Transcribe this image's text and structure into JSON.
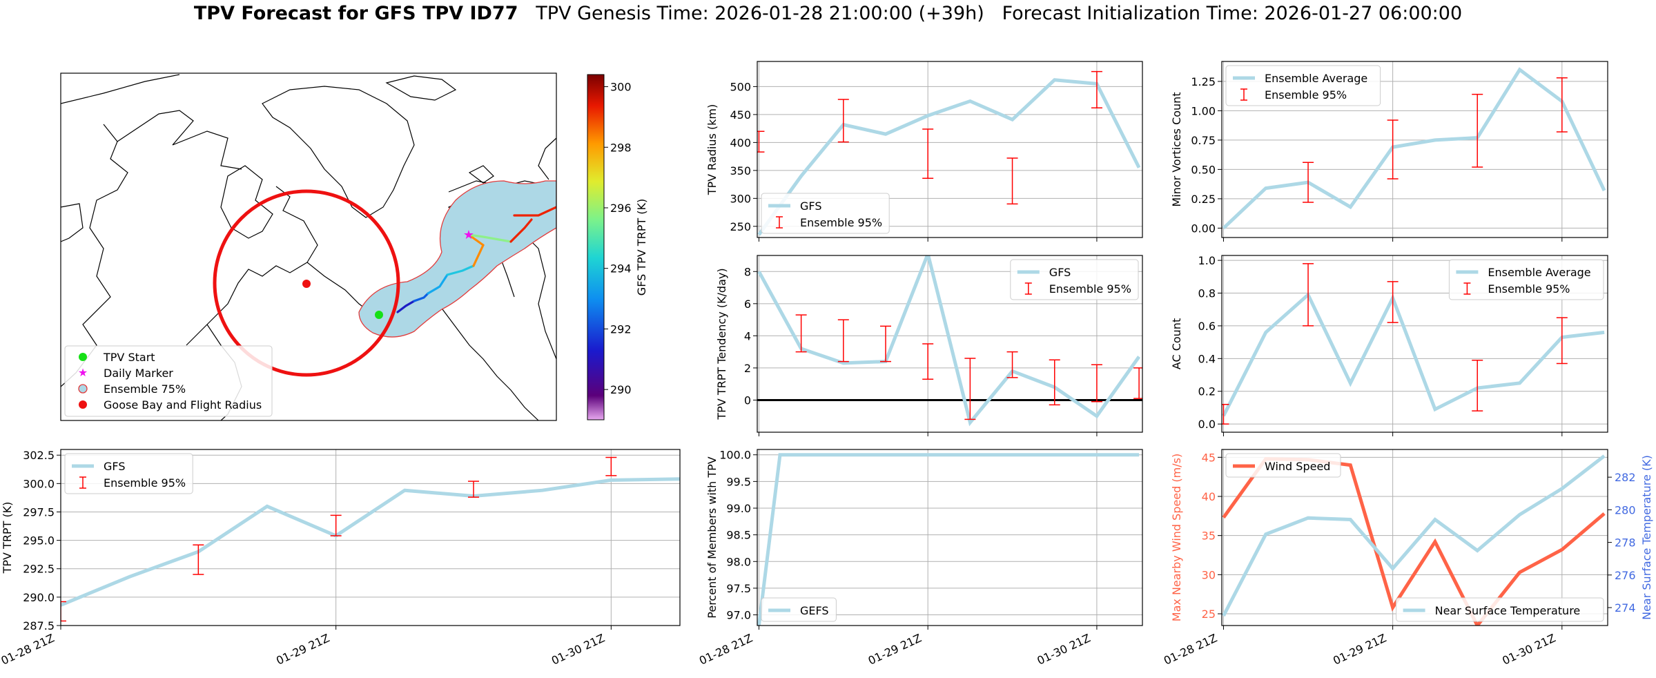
{
  "title": {
    "main": "TPV Forecast for GFS TPV ID77",
    "genesis": "TPV Genesis Time: 2026-01-28 21:00:00 (+39h)",
    "init": "Forecast Initialization Time: 2026-01-27 06:00:00"
  },
  "time_ticks": [
    "01-28 21Z",
    "01-29 21Z",
    "01-30 21Z"
  ],
  "colors": {
    "main_line": "#add8e6",
    "error_bar": "#ff0000",
    "wind": "#ff6347",
    "temp_axis": "#4169e1",
    "grid": "#b0b0b0"
  },
  "map": {
    "legend": [
      "TPV Start",
      "Daily Marker",
      "Ensemble 75%",
      "Goose Bay and Flight Radius"
    ],
    "colorbar": {
      "label": "GFS TPV TRPT (K)",
      "min": 289,
      "max": 300.4,
      "ticks": [
        "290",
        "292",
        "294",
        "296",
        "298",
        "300"
      ]
    }
  },
  "chart_data": [
    {
      "id": "radius",
      "type": "line",
      "ylabel": "TPV Radius (km)",
      "ylim": [
        230,
        545
      ],
      "yticks": [
        "250",
        "300",
        "350",
        "400",
        "450",
        "500"
      ],
      "x": [
        0,
        0.25,
        0.5,
        0.75,
        1.0,
        1.25,
        1.5,
        1.75,
        2.0,
        2.25
      ],
      "series": [
        {
          "name": "GFS",
          "values": [
            235,
            340,
            432,
            415,
            448,
            474,
            441,
            512,
            505,
            355
          ]
        }
      ],
      "error_bars": [
        {
          "x": 0.0,
          "low": 383,
          "high": 420
        },
        {
          "x": 0.25,
          "low": null,
          "high": null
        },
        {
          "x": 0.5,
          "low": 401,
          "high": 477
        },
        {
          "x": 1.0,
          "low": 336,
          "high": 424
        },
        {
          "x": 1.5,
          "low": 290,
          "high": 372
        },
        {
          "x": 2.0,
          "low": 462,
          "high": 527
        }
      ],
      "legend": [
        "GFS",
        "Ensemble 95%"
      ],
      "legend_loc": "lower-left"
    },
    {
      "id": "minor-vortices",
      "type": "line",
      "ylabel": "Minor Vortices Count",
      "ylim": [
        -0.08,
        1.42
      ],
      "yticks": [
        "0.00",
        "0.25",
        "0.50",
        "0.75",
        "1.00",
        "1.25"
      ],
      "x": [
        0,
        0.25,
        0.5,
        0.75,
        1.0,
        1.25,
        1.5,
        1.75,
        2.0,
        2.25
      ],
      "series": [
        {
          "name": "Ensemble Average",
          "values": [
            0.0,
            0.34,
            0.39,
            0.18,
            0.69,
            0.75,
            0.77,
            1.35,
            1.08,
            0.32
          ]
        }
      ],
      "error_bars": [
        {
          "x": 0.5,
          "low": 0.22,
          "high": 0.56
        },
        {
          "x": 1.0,
          "low": 0.42,
          "high": 0.92
        },
        {
          "x": 1.5,
          "low": 0.52,
          "high": 1.14
        },
        {
          "x": 2.0,
          "low": 0.82,
          "high": 1.28
        }
      ],
      "legend": [
        "Ensemble Average",
        "Ensemble 95%"
      ],
      "legend_loc": "upper-left"
    },
    {
      "id": "tendency",
      "type": "line",
      "ylabel": "TPV TRPT Tendency (K/day)",
      "ylim": [
        -2.0,
        9.0
      ],
      "yticks": [
        "0",
        "2",
        "4",
        "6",
        "8"
      ],
      "x": [
        0,
        0.25,
        0.5,
        0.75,
        1.0,
        1.25,
        1.5,
        1.75,
        2.0,
        2.25
      ],
      "series": [
        {
          "name": "GFS",
          "values": [
            8.0,
            3.2,
            2.3,
            2.4,
            9.1,
            -1.4,
            1.8,
            0.8,
            -1.0,
            2.7
          ]
        }
      ],
      "error_bars": [
        {
          "x": 0.25,
          "low": 3.0,
          "high": 5.3
        },
        {
          "x": 0.5,
          "low": 2.4,
          "high": 5.0
        },
        {
          "x": 0.75,
          "low": 2.4,
          "high": 4.6
        },
        {
          "x": 1.0,
          "low": 1.3,
          "high": 3.5
        },
        {
          "x": 1.25,
          "low": -1.2,
          "high": 2.6
        },
        {
          "x": 1.5,
          "low": 1.4,
          "high": 3.0
        },
        {
          "x": 1.75,
          "low": -0.3,
          "high": 2.5
        },
        {
          "x": 2.0,
          "low": -0.1,
          "high": 2.2
        },
        {
          "x": 2.25,
          "low": 0.1,
          "high": 2.0
        }
      ],
      "zero_line": true,
      "legend": [
        "GFS",
        "Ensemble 95%"
      ],
      "legend_loc": "upper-right"
    },
    {
      "id": "ac-count",
      "type": "line",
      "ylabel": "AC Count",
      "ylim": [
        -0.05,
        1.03
      ],
      "yticks": [
        "0.0",
        "0.2",
        "0.4",
        "0.6",
        "0.8",
        "1.0"
      ],
      "x": [
        0,
        0.25,
        0.5,
        0.75,
        1.0,
        1.25,
        1.5,
        1.75,
        2.0,
        2.25
      ],
      "series": [
        {
          "name": "Ensemble Average",
          "values": [
            0.05,
            0.56,
            0.79,
            0.25,
            0.77,
            0.09,
            0.22,
            0.25,
            0.53,
            0.56
          ]
        }
      ],
      "error_bars": [
        {
          "x": 0.0,
          "low": 0.0,
          "high": 0.12
        },
        {
          "x": 0.5,
          "low": 0.6,
          "high": 0.98
        },
        {
          "x": 1.0,
          "low": 0.62,
          "high": 0.87
        },
        {
          "x": 1.5,
          "low": 0.08,
          "high": 0.39
        },
        {
          "x": 2.0,
          "low": 0.37,
          "high": 0.65
        }
      ],
      "legend": [
        "Ensemble Average",
        "Ensemble 95%"
      ],
      "legend_loc": "upper-right"
    },
    {
      "id": "trpt",
      "type": "line",
      "ylabel": "TPV TRPT (K)",
      "ylim": [
        287.5,
        303.0
      ],
      "yticks": [
        "287.5",
        "290.0",
        "292.5",
        "295.0",
        "297.5",
        "300.0",
        "302.5"
      ],
      "x": [
        0,
        0.25,
        0.5,
        0.75,
        1.0,
        1.25,
        1.5,
        1.75,
        2.0,
        2.25
      ],
      "series": [
        {
          "name": "GFS",
          "values": [
            289.3,
            291.8,
            294.0,
            298.0,
            295.4,
            299.4,
            298.9,
            299.4,
            300.3,
            300.4
          ]
        }
      ],
      "error_bars": [
        {
          "x": 0.0,
          "low": 287.9,
          "high": 289.6
        },
        {
          "x": 0.5,
          "low": 292.0,
          "high": 294.6
        },
        {
          "x": 1.0,
          "low": 295.4,
          "high": 297.2
        },
        {
          "x": 1.5,
          "low": 298.8,
          "high": 300.2
        },
        {
          "x": 2.0,
          "low": 300.7,
          "high": 302.3
        }
      ],
      "legend": [
        "GFS",
        "Ensemble 95%"
      ],
      "legend_loc": "upper-left"
    },
    {
      "id": "percent-members",
      "type": "line",
      "ylabel": "Percent of Members with TPV",
      "ylim": [
        96.8,
        100.1
      ],
      "yticks": [
        "97.0",
        "97.5",
        "98.0",
        "98.5",
        "99.0",
        "99.5",
        "100.0"
      ],
      "x": [
        0,
        0.125,
        0.25,
        0.5,
        0.75,
        1.0,
        1.25,
        1.5,
        1.75,
        2.0,
        2.25
      ],
      "series": [
        {
          "name": "GEFS",
          "values": [
            96.8,
            100.0,
            100.0,
            100.0,
            100.0,
            100.0,
            100.0,
            100.0,
            100.0,
            100.0,
            100.0
          ]
        }
      ],
      "error_bars": [],
      "legend": [
        "GEFS"
      ],
      "legend_loc": "lower-left"
    },
    {
      "id": "wind-temp",
      "type": "line",
      "ylabel": "Max Nearby Wind Speed (m/s)",
      "ylabel_right": "Near Surface Temperature (K)",
      "ylim": [
        23.5,
        46.0
      ],
      "ylim_right": [
        272.9,
        283.7
      ],
      "yticks": [
        "25",
        "30",
        "35",
        "40",
        "45"
      ],
      "yticks_right": [
        "274",
        "276",
        "278",
        "280",
        "282"
      ],
      "x": [
        0,
        0.25,
        0.5,
        0.75,
        1.0,
        1.25,
        1.5,
        1.75,
        2.0,
        2.25
      ],
      "series": [
        {
          "name": "Wind Speed",
          "axis": "left",
          "values": [
            37.3,
            44.8,
            44.7,
            44.0,
            25.8,
            34.2,
            23.5,
            30.3,
            33.2,
            37.8
          ]
        },
        {
          "name": "Near Surface Temperature",
          "axis": "right",
          "values": [
            273.5,
            278.5,
            279.5,
            279.4,
            276.4,
            279.4,
            277.5,
            279.7,
            281.3,
            283.3
          ]
        }
      ],
      "legend": [
        "Wind Speed",
        "Near Surface Temperature"
      ],
      "legend_loc": "upper-left / lower-right"
    }
  ]
}
